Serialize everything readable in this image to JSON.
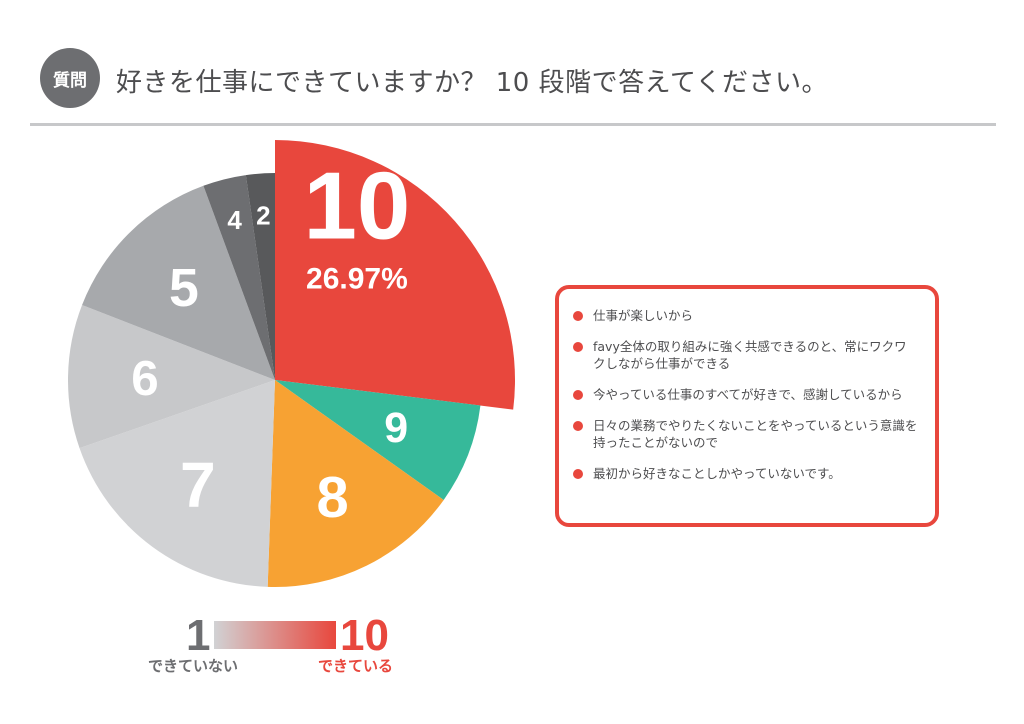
{
  "header": {
    "badge": "質問",
    "title": "好きを仕事にできていますか？ 10 段階で答えてください。"
  },
  "chart_data": {
    "type": "pie",
    "slices": [
      {
        "label": "10",
        "percent": 26.97,
        "color": "#e8473d",
        "exploded": true
      },
      {
        "label": "9",
        "percent": 7.87,
        "color": "#36b99a"
      },
      {
        "label": "8",
        "percent": 15.73,
        "color": "#f7a233"
      },
      {
        "label": "7",
        "percent": 19.1,
        "color": "#d1d2d4"
      },
      {
        "label": "6",
        "percent": 11.24,
        "color": "#c7c8ca"
      },
      {
        "label": "5",
        "percent": 13.48,
        "color": "#a7a9ac"
      },
      {
        "label": "4",
        "percent": 3.37,
        "color": "#6d6e71"
      },
      {
        "label": "2",
        "percent": 2.25,
        "color": "#58595b"
      }
    ],
    "highlight_label": "26.97%"
  },
  "reasons": {
    "items": [
      "仕事が楽しいから",
      "favy全体の取り組みに強く共感できるのと、常にワクワクしながら仕事ができる",
      "今やっている仕事のすべてが好きで、感謝しているから",
      "日々の業務でやりたくないことをやっているという意識を持ったことがないので",
      "最初から好きなことしかやっていないです。"
    ]
  },
  "scale": {
    "low_value": "1",
    "high_value": "10",
    "low_caption": "できていない",
    "high_caption": "できている"
  }
}
